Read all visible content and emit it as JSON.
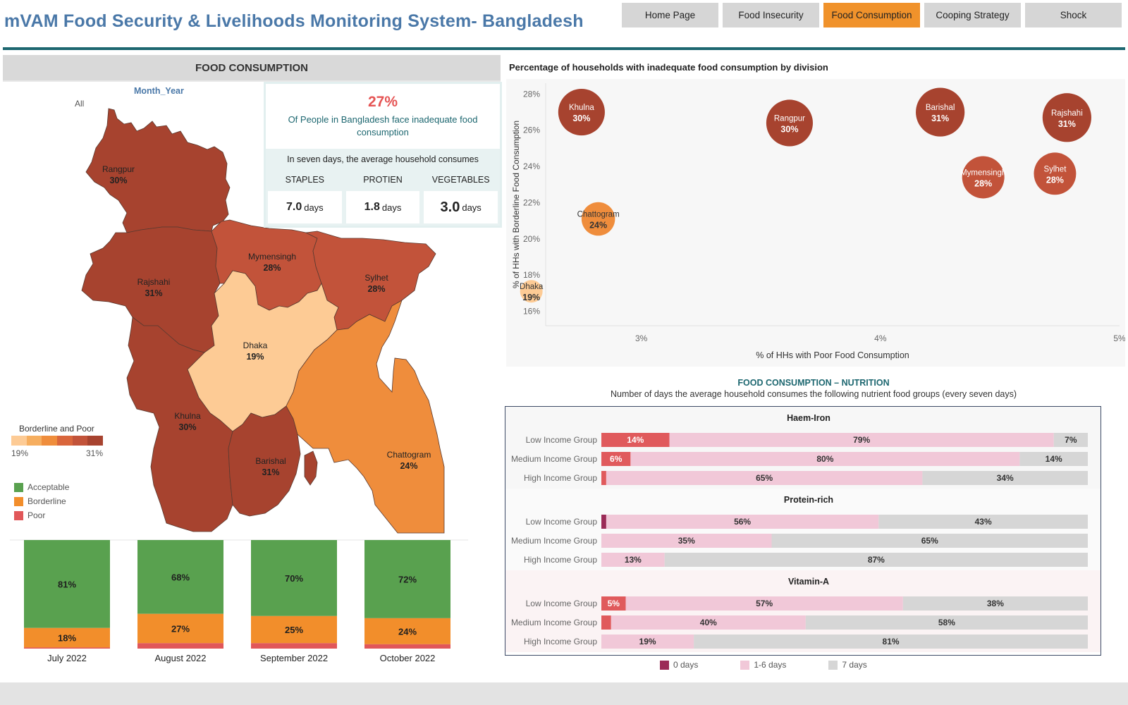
{
  "header": {
    "title": "mVAM  Food Security & Livelihoods Monitoring System- Bangladesh",
    "nav": [
      {
        "label": "Home Page",
        "active": false
      },
      {
        "label": "Food Insecurity",
        "active": false
      },
      {
        "label": "Food Consumption",
        "active": true
      },
      {
        "label": "Cooping Strategy",
        "active": false
      },
      {
        "label": "Shock",
        "active": false
      }
    ]
  },
  "left": {
    "title": "FOOD CONSUMPTION",
    "filter_label": "Month_Year",
    "filter_value": "All"
  },
  "kpi": {
    "pct": "27%",
    "desc": "Of People in Bangladesh face inadequate food consumption",
    "sub": "In seven days, the average household consumes",
    "heads": [
      "STAPLES",
      "PROTIEN",
      "VEGETABLES"
    ],
    "values": [
      {
        "num": "7.0",
        "unit": "days"
      },
      {
        "num": "1.8",
        "unit": "days"
      },
      {
        "num": "3.0",
        "unit": "days"
      }
    ]
  },
  "map": {
    "legend_title": "Borderline and Poor",
    "legend_min": "19%",
    "legend_max": "31%",
    "gradient": [
      "#fdcb95",
      "#f6ae5f",
      "#ef8d3c",
      "#d9663c",
      "#c2533a",
      "#a7432f"
    ],
    "divisions": [
      {
        "name": "Rangpur",
        "pct": "30%",
        "value": 30
      },
      {
        "name": "Rajshahi",
        "pct": "31%",
        "value": 31
      },
      {
        "name": "Mymensingh",
        "pct": "28%",
        "value": 28
      },
      {
        "name": "Sylhet",
        "pct": "28%",
        "value": 28
      },
      {
        "name": "Dhaka",
        "pct": "19%",
        "value": 19
      },
      {
        "name": "Khulna",
        "pct": "30%",
        "value": 30
      },
      {
        "name": "Barishal",
        "pct": "31%",
        "value": 31
      },
      {
        "name": "Chattogram",
        "pct": "24%",
        "value": 24
      }
    ],
    "categories": [
      {
        "label": "Acceptable",
        "color": "#59a14f"
      },
      {
        "label": "Borderline",
        "color": "#f28e2b"
      },
      {
        "label": "Poor",
        "color": "#e15759"
      }
    ]
  },
  "monthly": {
    "chart_data": {
      "type": "bar",
      "stacked": true,
      "categories": [
        "July 2022",
        "August 2022",
        "September 2022",
        "October 2022"
      ],
      "series": [
        {
          "name": "Acceptable",
          "values": [
            81,
            68,
            70,
            72
          ],
          "color": "#59a14f"
        },
        {
          "name": "Borderline",
          "values": [
            18,
            27,
            25,
            24
          ],
          "color": "#f28e2b"
        },
        {
          "name": "Poor",
          "values": [
            1,
            5,
            5,
            4
          ],
          "color": "#e15759"
        }
      ],
      "labels": {
        "Acceptable": [
          "81%",
          "68%",
          "70%",
          "72%"
        ],
        "Borderline": [
          "18%",
          "27%",
          "25%",
          "24%"
        ]
      }
    }
  },
  "bubble": {
    "title": "Percentage of households with inadequate food consumption by division",
    "chart_data": {
      "type": "scatter",
      "xlabel": "% of HHs with Poor Food Consumption",
      "ylabel": "% of HHs with Borderline Food Consumption",
      "xlim": [
        2.6,
        5.0
      ],
      "ylim": [
        15.2,
        28.6
      ],
      "xticks": [
        3,
        4,
        5
      ],
      "xtick_labels": [
        "3%",
        "4%",
        "5%"
      ],
      "yticks": [
        16,
        18,
        20,
        22,
        24,
        26,
        28
      ],
      "ytick_labels": [
        "16%",
        "18%",
        "20%",
        "22%",
        "24%",
        "26%",
        "28%"
      ],
      "points": [
        {
          "name": "Khulna",
          "label": "30%",
          "x": 2.75,
          "y": 27.0,
          "value": 30
        },
        {
          "name": "Rangpur",
          "label": "30%",
          "x": 3.62,
          "y": 26.4,
          "value": 30
        },
        {
          "name": "Barishal",
          "label": "31%",
          "x": 4.25,
          "y": 27.0,
          "value": 31
        },
        {
          "name": "Rajshahi",
          "label": "31%",
          "x": 4.78,
          "y": 26.7,
          "value": 31
        },
        {
          "name": "Mymensingh",
          "label": "28%",
          "x": 4.43,
          "y": 23.4,
          "value": 28
        },
        {
          "name": "Sylhet",
          "label": "28%",
          "x": 4.73,
          "y": 23.6,
          "value": 28
        },
        {
          "name": "Chattogram",
          "label": "24%",
          "x": 2.82,
          "y": 21.1,
          "value": 24
        },
        {
          "name": "Dhaka",
          "label": "19%",
          "x": 2.54,
          "y": 17.1,
          "value": 19
        }
      ]
    }
  },
  "nutrition": {
    "title": "FOOD CONSUMPTION – NUTRITION",
    "subtitle": "Number of days the average household consumes the following nutrient food groups (every seven days)",
    "legend": [
      {
        "label": "0 days",
        "color": "#9b2b57"
      },
      {
        "label": "1-6 days",
        "color": "#f1c8d8"
      },
      {
        "label": "7 days",
        "color": "#d6d6d6"
      }
    ],
    "chart_data": {
      "type": "bar",
      "stacked": true,
      "orientation": "horizontal",
      "groups": [
        {
          "name": "Haem-Iron",
          "rows": [
            {
              "label": "Low Income Group",
              "values": [
                14,
                79,
                7
              ],
              "labels": [
                "14%",
                "79%",
                "7%"
              ]
            },
            {
              "label": "Medium Income Group",
              "values": [
                6,
                80,
                14
              ],
              "labels": [
                "6%",
                "80%",
                "14%"
              ]
            },
            {
              "label": "High Income Group",
              "values": [
                1,
                65,
                34
              ],
              "labels": [
                "",
                "65%",
                "34%"
              ]
            }
          ]
        },
        {
          "name": "Protein-rich",
          "rows": [
            {
              "label": "Low Income Group",
              "values": [
                1,
                56,
                43
              ],
              "labels": [
                "",
                "56%",
                "43%"
              ]
            },
            {
              "label": "Medium Income Group",
              "values": [
                0,
                35,
                65
              ],
              "labels": [
                "",
                "35%",
                "65%"
              ]
            },
            {
              "label": "High Income Group",
              "values": [
                0,
                13,
                87
              ],
              "labels": [
                "",
                "13%",
                "87%"
              ]
            }
          ]
        },
        {
          "name": "Vitamin-A",
          "rows": [
            {
              "label": "Low Income Group",
              "values": [
                5,
                57,
                38
              ],
              "labels": [
                "5%",
                "57%",
                "38%"
              ]
            },
            {
              "label": "Medium Income Group",
              "values": [
                2,
                40,
                58
              ],
              "labels": [
                "",
                "40%",
                "58%"
              ]
            },
            {
              "label": "High Income Group",
              "values": [
                0,
                19,
                81
              ],
              "labels": [
                "",
                "19%",
                "81%"
              ]
            }
          ]
        }
      ],
      "series": [
        "0 days",
        "1-6 days",
        "7 days"
      ]
    }
  }
}
